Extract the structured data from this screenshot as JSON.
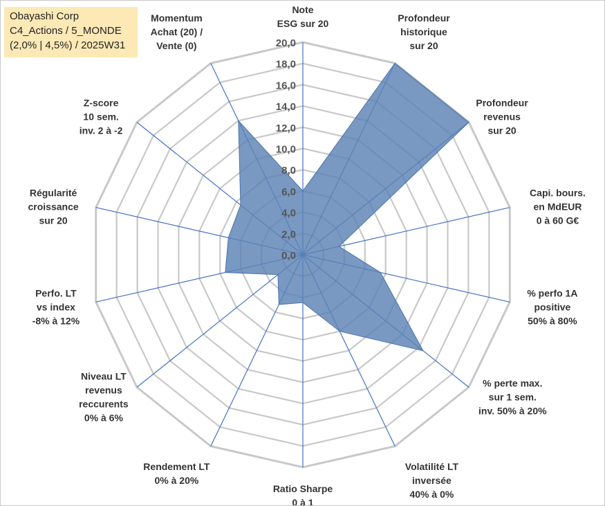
{
  "title_box": {
    "line1": "Obayashi Corp",
    "line2": "C4_Actions / 5_MONDE",
    "line3": "(2,0% | 4,5%) / 2025W31"
  },
  "chart_data": {
    "type": "radar",
    "axes": [
      [
        "Note",
        "ESG sur 20"
      ],
      [
        "Profondeur",
        "historique",
        "sur 20"
      ],
      [
        "Profondeur",
        "revenus",
        "sur 20"
      ],
      [
        "Capi. bours.",
        "en MdEUR",
        "0 à 60 G€"
      ],
      [
        "% perfo 1A",
        "positive",
        "50% à 80%"
      ],
      [
        "% perte max.",
        "sur 1 sem.",
        "inv. 50% à 20%"
      ],
      [
        "Volatilité LT",
        "inversée",
        "40% à 0%"
      ],
      [
        "Ratio Sharpe",
        "0 à 1"
      ],
      [
        "Rendement LT",
        "0% à 20%"
      ],
      [
        "Niveau LT",
        "revenus",
        "reccurents",
        "0% à 6%"
      ],
      [
        "Perfo. LT",
        "vs index",
        "-8% à 12%"
      ],
      [
        "Régularité",
        "croissance",
        "sur 20"
      ],
      [
        "Z-score",
        "10 sem.",
        "inv. 2 à -2"
      ],
      [
        "Momentum",
        "Achat (20) /",
        "Vente (0)"
      ]
    ],
    "values": [
      6.0,
      20.0,
      20.0,
      3.5,
      7.5,
      14.5,
      8.0,
      4.5,
      5.2,
      3.0,
      7.5,
      7.2,
      7.5,
      14.0
    ],
    "rlim": [
      0,
      20
    ],
    "ticks": [
      "0,0",
      "2,0",
      "4,0",
      "6,0",
      "8,0",
      "10,0",
      "12,0",
      "14,0",
      "16,0",
      "18,0",
      "20,0"
    ],
    "fill_color": "#5b83b5",
    "grid_color": "#c8c8c8",
    "spoke_color": "#4472c4"
  }
}
